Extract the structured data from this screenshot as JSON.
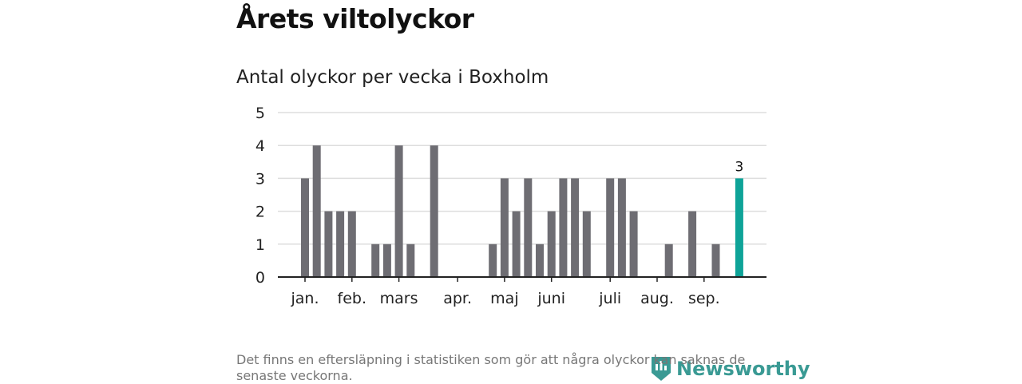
{
  "title": "Årets viltolyckor",
  "chart_data": {
    "type": "bar",
    "title": "Antal olyckor per vecka i Boxholm",
    "xlabel": "",
    "ylabel": "",
    "ylim": [
      0,
      5
    ],
    "yticks": [
      0,
      1,
      2,
      3,
      4,
      5
    ],
    "values": [
      3,
      4,
      2,
      2,
      2,
      0,
      1,
      1,
      4,
      1,
      0,
      4,
      0,
      0,
      0,
      0,
      1,
      3,
      2,
      3,
      1,
      2,
      3,
      3,
      2,
      0,
      3,
      3,
      2,
      0,
      0,
      1,
      0,
      2,
      0,
      1,
      0,
      3
    ],
    "month_labels": [
      {
        "label": "jan.",
        "week": 0
      },
      {
        "label": "feb.",
        "week": 4
      },
      {
        "label": "mars",
        "week": 8
      },
      {
        "label": "apr.",
        "week": 13
      },
      {
        "label": "maj",
        "week": 17
      },
      {
        "label": "juni",
        "week": 21
      },
      {
        "label": "juli",
        "week": 26
      },
      {
        "label": "aug.",
        "week": 30
      },
      {
        "label": "sep.",
        "week": 34
      }
    ],
    "highlight_label": "3",
    "bar_color": "#6e6d73",
    "highlight_color": "#0ea398",
    "grid": true
  },
  "footnote": "Det finns en eftersläpning i statistiken som gör att några olyckor kan saknas de senaste veckorna.",
  "logo": "Newsworthy"
}
